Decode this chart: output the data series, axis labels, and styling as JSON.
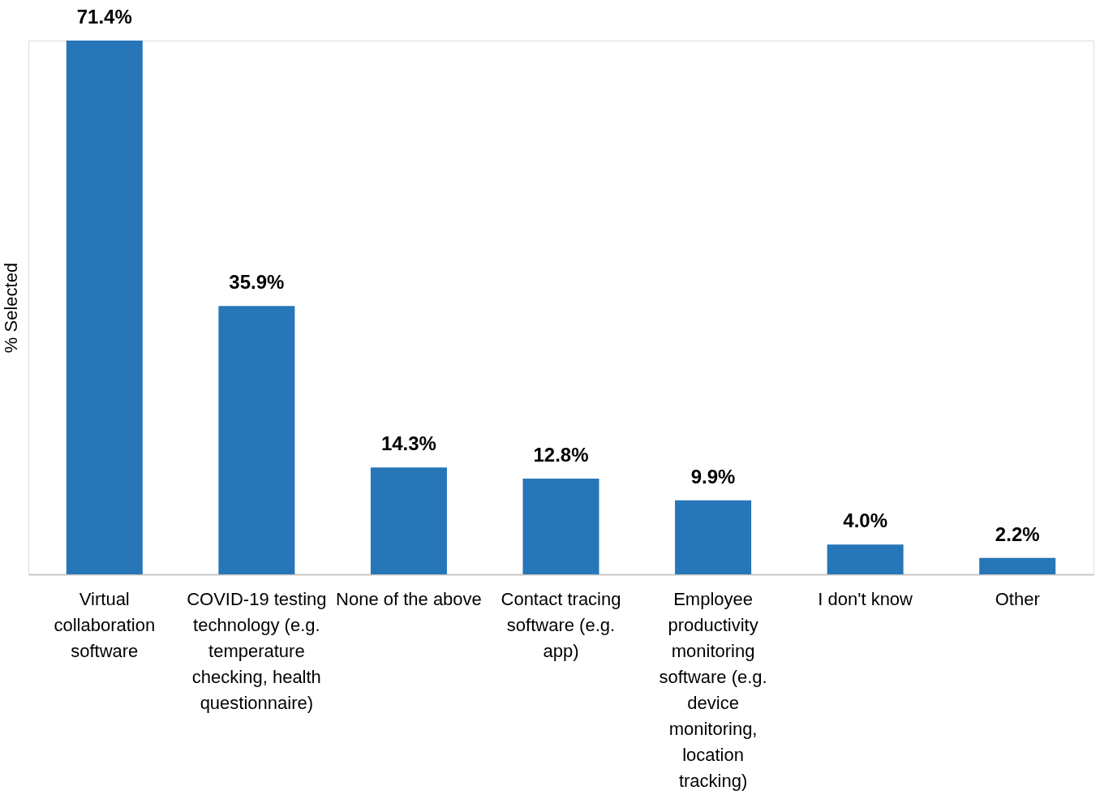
{
  "chart_data": {
    "type": "bar",
    "ylabel": "% Selected",
    "color": "#2676b8",
    "categories": [
      "Virtual collaboration software",
      "COVID-19 testing technology (e.g. temperature checking, health questionnaire)",
      "None of the above",
      "Contact tracing software (e.g. app)",
      "Employee productivity monitoring software (e.g. device monitoring, location tracking)",
      "I don't know",
      "Other"
    ],
    "values": [
      71.4,
      35.9,
      14.3,
      12.8,
      9.9,
      4.0,
      2.2
    ],
    "value_labels": [
      "71.4%",
      "35.9%",
      "14.3%",
      "12.8%",
      "9.9%",
      "4.0%",
      "2.2%"
    ],
    "grid": false
  }
}
